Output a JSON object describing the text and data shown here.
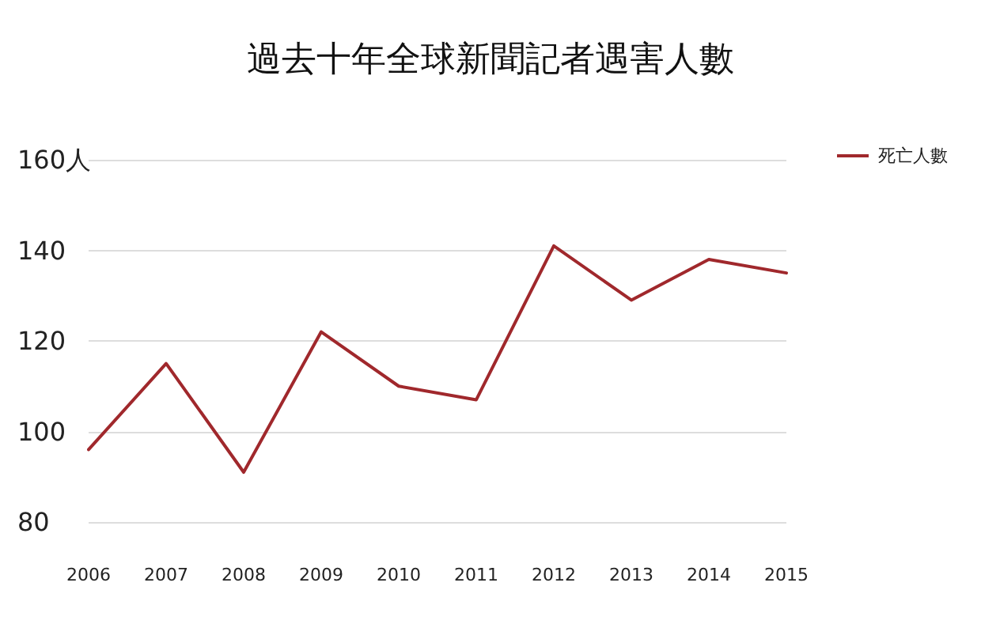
{
  "chart_data": {
    "type": "line",
    "title": "過去十年全球新聞記者遇害人數",
    "categories": [
      "2006",
      "2007",
      "2008",
      "2009",
      "2010",
      "2011",
      "2012",
      "2013",
      "2014",
      "2015"
    ],
    "series": [
      {
        "name": "死亡人數",
        "color": "#a0282c",
        "values": [
          96,
          115,
          91,
          122,
          110,
          107,
          141,
          129,
          138,
          135
        ]
      }
    ],
    "ylim": [
      80,
      160
    ],
    "yticks": [
      80,
      100,
      120,
      140,
      {
        "value": 160,
        "label": "160人"
      }
    ],
    "grid": "y",
    "legend": "top right",
    "marker": "none",
    "line_style": "solid"
  }
}
